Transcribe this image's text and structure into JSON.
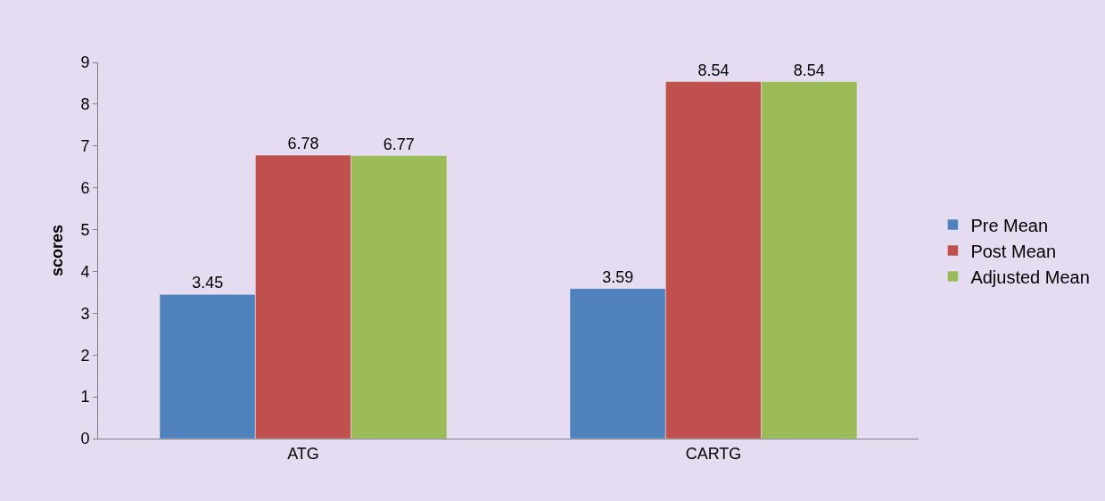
{
  "chart_data": {
    "type": "bar",
    "ylabel": "scores",
    "categories": [
      "ATG",
      "CARTG"
    ],
    "series": [
      {
        "name": "Pre Mean",
        "color": "#4f81bd",
        "values": [
          3.45,
          3.59
        ]
      },
      {
        "name": "Post Mean",
        "color": "#c0504d",
        "values": [
          6.78,
          8.54
        ]
      },
      {
        "name": "Adjusted Mean",
        "color": "#9bbb59",
        "values": [
          6.77,
          8.54
        ]
      }
    ],
    "ylim": [
      0,
      9
    ],
    "yticks": [
      0,
      1,
      2,
      3,
      4,
      5,
      6,
      7,
      8,
      9
    ],
    "grid": false,
    "legend": "right",
    "data_labels": true
  }
}
